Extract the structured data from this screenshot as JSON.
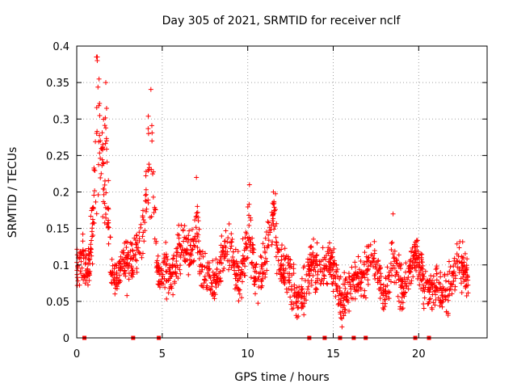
{
  "chart_data": {
    "type": "scatter",
    "title": "Day 305 of 2021, SRMTID for receiver nclf",
    "xlabel": "GPS time / hours",
    "ylabel": "SRMTID / TECUs",
    "xlim": [
      0,
      24
    ],
    "ylim": [
      0,
      0.4
    ],
    "xticks": [
      0,
      5,
      10,
      15,
      20
    ],
    "xtick_labels": [
      "0",
      "5",
      "10",
      "15",
      "20"
    ],
    "yticks": [
      0,
      0.05,
      0.1,
      0.15,
      0.2,
      0.25,
      0.3,
      0.35,
      0.4
    ],
    "ytick_labels": [
      "0",
      "0.05",
      "0.1",
      "0.15",
      "0.2",
      "0.25",
      "0.3",
      "0.35",
      "0.4"
    ],
    "grid": true,
    "marker": "+",
    "color": "#ff0000",
    "data_x_range": [
      0,
      22.9
    ],
    "peaks": [
      {
        "x": 1.2,
        "y": 0.38
      },
      {
        "x": 1.7,
        "y": 0.35
      },
      {
        "x": 4.2,
        "y": 0.28
      },
      {
        "x": 4.4,
        "y": 0.27
      },
      {
        "x": 7.0,
        "y": 0.22
      },
      {
        "x": 10.1,
        "y": 0.21
      },
      {
        "x": 11.5,
        "y": 0.2
      },
      {
        "x": 18.5,
        "y": 0.17
      }
    ],
    "baseline_markers_x": [
      0.45,
      3.3,
      4.8,
      13.6,
      14.5,
      15.4,
      16.2,
      16.9,
      19.8,
      20.6
    ],
    "baseline_markers_y": 0.0
  }
}
